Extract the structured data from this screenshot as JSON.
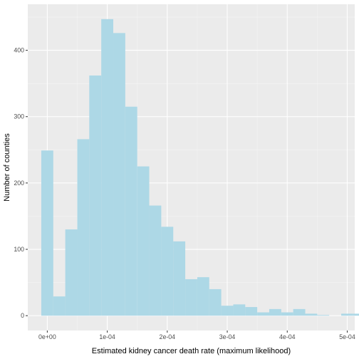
{
  "chart_data": {
    "type": "bar",
    "xlabel": "Estimated kidney cancer death rate (maximum likelihood)",
    "ylabel": "Number of counties",
    "bin_width": 2e-05,
    "bins": [
      {
        "center": 0.0,
        "count": 249
      },
      {
        "center": 2e-05,
        "count": 29
      },
      {
        "center": 4e-05,
        "count": 130
      },
      {
        "center": 6e-05,
        "count": 266
      },
      {
        "center": 8e-05,
        "count": 362
      },
      {
        "center": 0.0001,
        "count": 447
      },
      {
        "center": 0.00012,
        "count": 426
      },
      {
        "center": 0.00014,
        "count": 315
      },
      {
        "center": 0.00016,
        "count": 225
      },
      {
        "center": 0.00018,
        "count": 166
      },
      {
        "center": 0.0002,
        "count": 134
      },
      {
        "center": 0.00022,
        "count": 112
      },
      {
        "center": 0.00024,
        "count": 55
      },
      {
        "center": 0.00026,
        "count": 58
      },
      {
        "center": 0.00028,
        "count": 40
      },
      {
        "center": 0.0003,
        "count": 15
      },
      {
        "center": 0.00032,
        "count": 17
      },
      {
        "center": 0.00034,
        "count": 13
      },
      {
        "center": 0.00036,
        "count": 5
      },
      {
        "center": 0.00038,
        "count": 10
      },
      {
        "center": 0.0004,
        "count": 5
      },
      {
        "center": 0.00042,
        "count": 10
      },
      {
        "center": 0.00044,
        "count": 3
      },
      {
        "center": 0.00046,
        "count": 1
      },
      {
        "center": 0.00048,
        "count": 0
      },
      {
        "center": 0.0005,
        "count": 3
      },
      {
        "center": 0.00052,
        "count": 3
      }
    ],
    "x_ticks": [
      {
        "value": 0.0,
        "label": "0e+00"
      },
      {
        "value": 0.0001,
        "label": "1e-04"
      },
      {
        "value": 0.0002,
        "label": "2e-04"
      },
      {
        "value": 0.0003,
        "label": "3e-04"
      },
      {
        "value": 0.0004,
        "label": "4e-04"
      },
      {
        "value": 0.0005,
        "label": "5e-04"
      }
    ],
    "y_ticks": [
      {
        "value": 0,
        "label": "0"
      },
      {
        "value": 100,
        "label": "100"
      },
      {
        "value": 200,
        "label": "200"
      },
      {
        "value": 300,
        "label": "300"
      },
      {
        "value": 400,
        "label": "400"
      }
    ],
    "xlim": [
      -3.25e-05,
      0.0005125
    ],
    "ylim": [
      -22.35,
      469.35
    ],
    "grid": true,
    "legend": "none",
    "colors": {
      "panel_background": "#ebebeb",
      "grid_major": "#ffffff",
      "grid_minor": "#f5f5f5",
      "bar_fill": "#add8e6"
    }
  }
}
